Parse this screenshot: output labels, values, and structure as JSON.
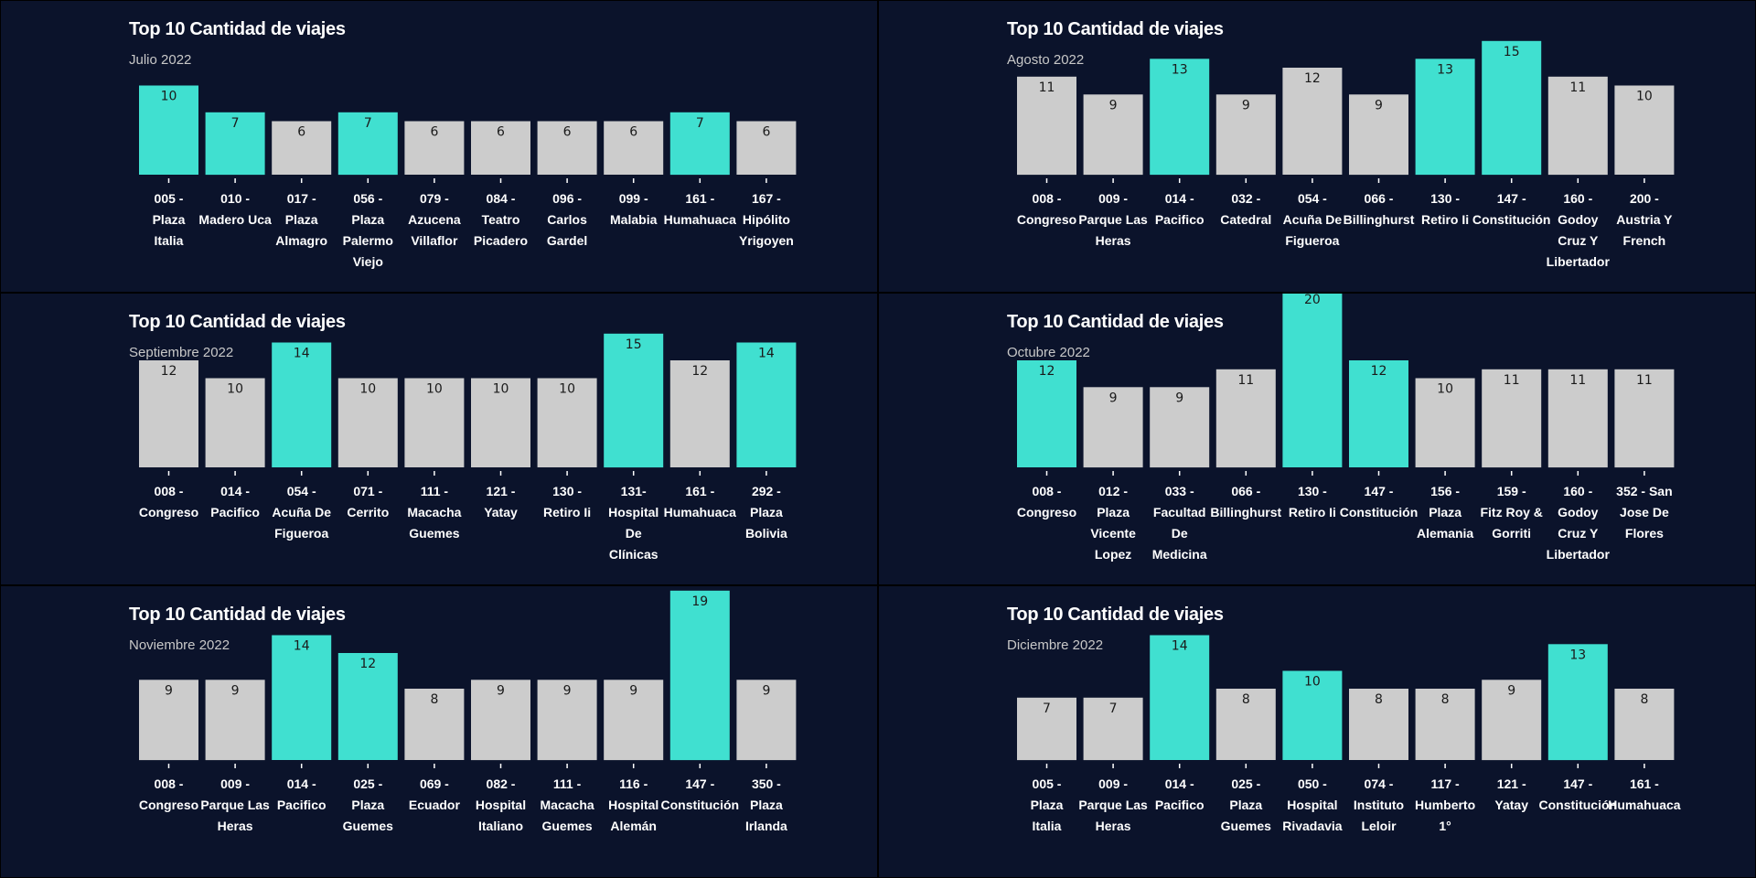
{
  "colors": {
    "background": "#0b132b",
    "highlight": "#40e0d0",
    "normal": "#cccccc",
    "tick": "#ffffff"
  },
  "chart_data": [
    {
      "type": "bar",
      "title": "Top 10 Cantidad de viajes",
      "subtitle": "Julio 2022",
      "categories": [
        [
          "005 -",
          "Plaza",
          "Italia"
        ],
        [
          "010 -",
          "Madero Uca"
        ],
        [
          "017 -",
          "Plaza",
          "Almagro"
        ],
        [
          "056 -",
          "Plaza",
          "Palermo",
          "Viejo"
        ],
        [
          "079 -",
          "Azucena",
          "Villaflor"
        ],
        [
          "084 -",
          "Teatro",
          "Picadero"
        ],
        [
          "096 -",
          "Carlos",
          "Gardel"
        ],
        [
          "099 -",
          "Malabia"
        ],
        [
          "161 -",
          "Humahuaca"
        ],
        [
          "167 -",
          "Hipólito",
          "Yrigoyen"
        ]
      ],
      "values": [
        10,
        7,
        6,
        7,
        6,
        6,
        6,
        6,
        7,
        6
      ],
      "highlighted": [
        true,
        true,
        false,
        true,
        false,
        false,
        false,
        false,
        true,
        false
      ]
    },
    {
      "type": "bar",
      "title": "Top 10 Cantidad de viajes",
      "subtitle": "Agosto 2022",
      "categories": [
        [
          "008 -",
          "Congreso"
        ],
        [
          "009 -",
          "Parque Las",
          "Heras"
        ],
        [
          "014 -",
          "Pacifico"
        ],
        [
          "032 -",
          "Catedral"
        ],
        [
          "054 -",
          "Acuña De",
          "Figueroa"
        ],
        [
          "066 -",
          "Billinghurst"
        ],
        [
          "130 -",
          "Retiro Ii"
        ],
        [
          "147 -",
          "Constitución"
        ],
        [
          "160 -",
          "Godoy",
          "Cruz Y",
          "Libertador"
        ],
        [
          "200 -",
          "Austria Y",
          "French"
        ]
      ],
      "values": [
        11,
        9,
        13,
        9,
        12,
        9,
        13,
        15,
        11,
        10
      ],
      "highlighted": [
        false,
        false,
        true,
        false,
        false,
        false,
        true,
        true,
        false,
        false
      ]
    },
    {
      "type": "bar",
      "title": "Top 10 Cantidad de viajes",
      "subtitle": "Septiembre 2022",
      "categories": [
        [
          "008 -",
          "Congreso"
        ],
        [
          "014 -",
          "Pacifico"
        ],
        [
          "054 -",
          "Acuña De",
          "Figueroa"
        ],
        [
          "071 -",
          "Cerrito"
        ],
        [
          "111 -",
          "Macacha",
          "Guemes"
        ],
        [
          "121 -",
          "Yatay"
        ],
        [
          "130 -",
          "Retiro Ii"
        ],
        [
          "131-",
          "Hospital",
          "De",
          "Clínicas"
        ],
        [
          "161 -",
          "Humahuaca"
        ],
        [
          "292 -",
          "Plaza",
          "Bolivia"
        ]
      ],
      "values": [
        12,
        10,
        14,
        10,
        10,
        10,
        10,
        15,
        12,
        14
      ],
      "highlighted": [
        false,
        false,
        true,
        false,
        false,
        false,
        false,
        true,
        false,
        true
      ]
    },
    {
      "type": "bar",
      "title": "Top 10 Cantidad de viajes",
      "subtitle": "Octubre 2022",
      "categories": [
        [
          "008 -",
          "Congreso"
        ],
        [
          "012 -",
          "Plaza",
          "Vicente",
          "Lopez"
        ],
        [
          "033 -",
          "Facultad",
          "De",
          "Medicina"
        ],
        [
          "066 -",
          "Billinghurst"
        ],
        [
          "130 -",
          "Retiro Ii"
        ],
        [
          "147 -",
          "Constitución"
        ],
        [
          "156 -",
          "Plaza",
          "Alemania"
        ],
        [
          "159 -",
          "Fitz Roy &",
          "Gorriti"
        ],
        [
          "160 -",
          "Godoy",
          "Cruz Y",
          "Libertador"
        ],
        [
          "352 - San",
          "Jose De",
          "Flores"
        ]
      ],
      "values": [
        12,
        9,
        9,
        11,
        20,
        12,
        10,
        11,
        11,
        11
      ],
      "highlighted": [
        true,
        false,
        false,
        false,
        true,
        true,
        false,
        false,
        false,
        false
      ]
    },
    {
      "type": "bar",
      "title": "Top 10 Cantidad de viajes",
      "subtitle": "Noviembre 2022",
      "categories": [
        [
          "008 -",
          "Congreso"
        ],
        [
          "009 -",
          "Parque Las",
          "Heras"
        ],
        [
          "014 -",
          "Pacifico"
        ],
        [
          "025 -",
          "Plaza",
          "Guemes"
        ],
        [
          "069 -",
          "Ecuador"
        ],
        [
          "082 -",
          "Hospital",
          "Italiano"
        ],
        [
          "111 -",
          "Macacha",
          "Guemes"
        ],
        [
          "116 -",
          "Hospital",
          "Alemán"
        ],
        [
          "147 -",
          "Constitución"
        ],
        [
          "350 -",
          "Plaza",
          "Irlanda"
        ]
      ],
      "values": [
        9,
        9,
        14,
        12,
        8,
        9,
        9,
        9,
        19,
        9
      ],
      "highlighted": [
        false,
        false,
        true,
        true,
        false,
        false,
        false,
        false,
        true,
        false
      ]
    },
    {
      "type": "bar",
      "title": "Top 10 Cantidad de viajes",
      "subtitle": "Diciembre 2022",
      "categories": [
        [
          "005 -",
          "Plaza",
          "Italia"
        ],
        [
          "009 -",
          "Parque Las",
          "Heras"
        ],
        [
          "014 -",
          "Pacifico"
        ],
        [
          "025 -",
          "Plaza",
          "Guemes"
        ],
        [
          "050 -",
          "Hospital",
          "Rivadavia"
        ],
        [
          "074 -",
          "Instituto",
          "Leloir"
        ],
        [
          "117 -",
          "Humberto",
          "1°"
        ],
        [
          "121 -",
          "Yatay"
        ],
        [
          "147 -",
          "Constitución"
        ],
        [
          "161 -",
          "Humahuaca"
        ]
      ],
      "values": [
        7,
        7,
        14,
        8,
        10,
        8,
        8,
        9,
        13,
        8
      ],
      "highlighted": [
        false,
        false,
        true,
        false,
        true,
        false,
        false,
        false,
        true,
        false
      ]
    }
  ]
}
